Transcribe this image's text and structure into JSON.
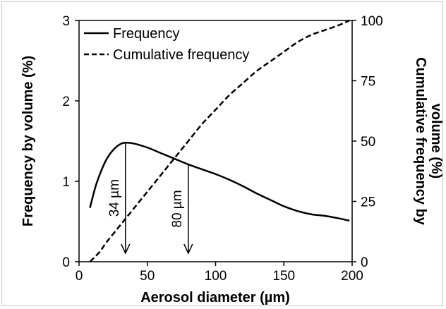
{
  "chart_data": {
    "type": "line",
    "xlabel": "Aerosol diameter (µm)",
    "ylabel": "Frequency by volume (%)",
    "y2label_lines": [
      "Cumulative frequency by",
      "volume (%)"
    ],
    "xlim": [
      0,
      200
    ],
    "ylim": [
      0,
      3
    ],
    "y2lim": [
      0,
      100
    ],
    "xticks": [
      "0",
      "50",
      "100",
      "150",
      "200"
    ],
    "yticks": [
      "0",
      "1",
      "2",
      "3"
    ],
    "y2ticks": [
      "0",
      "25",
      "50",
      "75",
      "100"
    ],
    "grid": false,
    "legend_position": "top-left",
    "series": [
      {
        "name": "Frequency",
        "axis": "left",
        "style": "solid",
        "x": [
          8,
          12,
          16,
          20,
          25,
          30,
          34,
          40,
          50,
          60,
          70,
          80,
          90,
          100,
          110,
          120,
          130,
          140,
          150,
          160,
          170,
          180,
          190,
          198
        ],
        "y": [
          0.67,
          0.93,
          1.12,
          1.27,
          1.39,
          1.46,
          1.48,
          1.47,
          1.42,
          1.35,
          1.28,
          1.21,
          1.15,
          1.09,
          1.02,
          0.94,
          0.85,
          0.77,
          0.69,
          0.63,
          0.59,
          0.57,
          0.54,
          0.51
        ]
      },
      {
        "name": "Cumulative frequency",
        "axis": "right",
        "style": "dashed",
        "x": [
          8,
          15,
          20,
          30,
          40,
          50,
          60,
          70,
          80,
          90,
          100,
          110,
          120,
          130,
          140,
          150,
          160,
          170,
          180,
          190,
          198
        ],
        "y": [
          0,
          4,
          8,
          15,
          22,
          29,
          36,
          43,
          50,
          57,
          63,
          69,
          74,
          79,
          83,
          87,
          91,
          94,
          96,
          98,
          100
        ]
      }
    ],
    "annotations": [
      {
        "label": "34 µm",
        "x": 34,
        "y_from": 1.48,
        "y_to": 0
      },
      {
        "label": "80 µm",
        "x": 80,
        "y_from": 1.21,
        "y_to": 0
      }
    ]
  }
}
